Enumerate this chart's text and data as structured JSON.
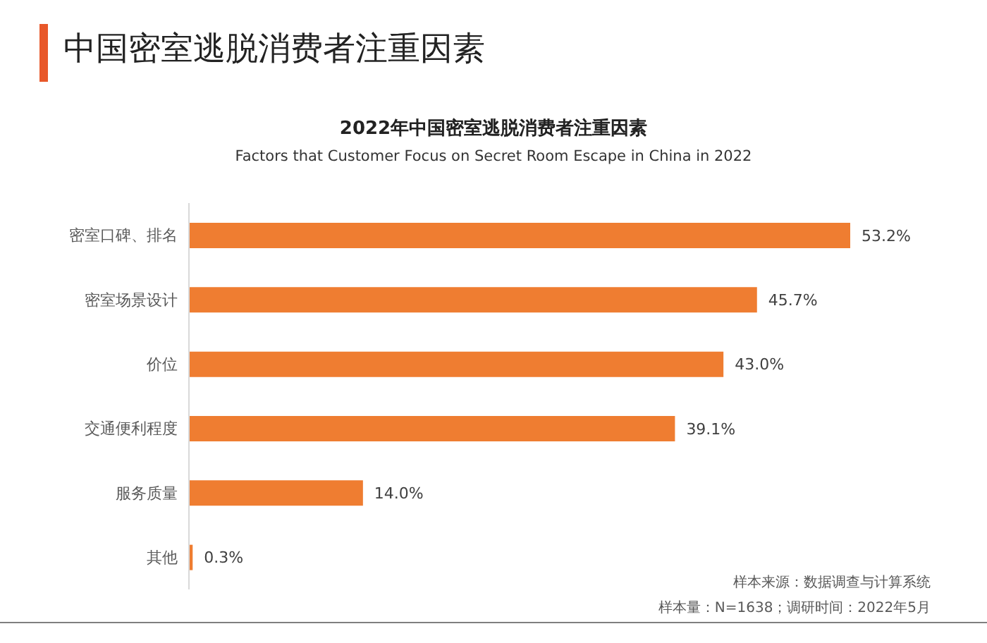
{
  "chart_data": {
    "type": "bar",
    "orientation": "horizontal",
    "title": "中国密室逃脱消费者注重因素",
    "subtitle": "2022年中国密室逃脱消费者注重因素",
    "categories": [
      "密室口碑、排名",
      "密室场景设计",
      "价位",
      "交通便利程度",
      "服务质量",
      "其他"
    ],
    "values": [
      53.2,
      45.7,
      43.0,
      39.1,
      14.0,
      0.3
    ],
    "value_labels": [
      "53.2%",
      "45.7%",
      "43.0%",
      "39.1%",
      "14.0%",
      "0.3%"
    ],
    "color": "#ef7d31",
    "annotations": [
      "Factors that Customer Focus on Secret Room Escape in China in 2022",
      "样本来源：数据调查与计算系统",
      "样本量：N=1638；调研时间：2022年5月"
    ]
  }
}
